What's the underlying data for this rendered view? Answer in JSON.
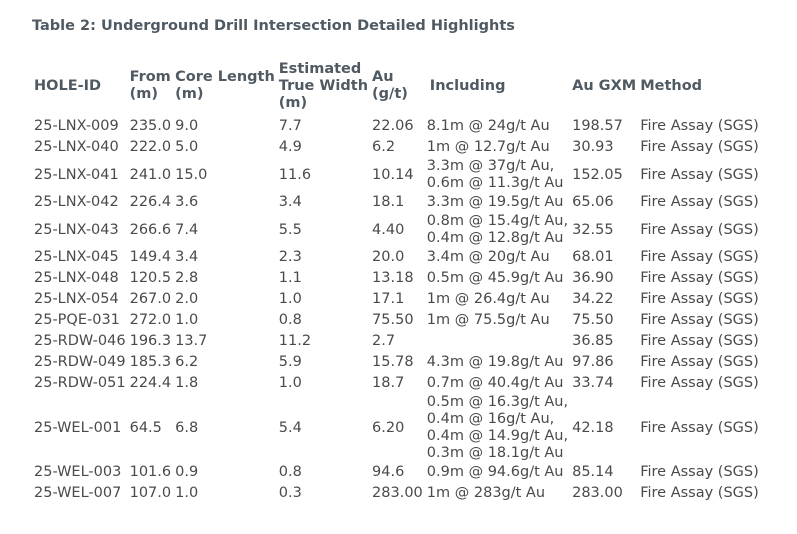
{
  "title": "Table 2: Underground Drill Intersection Detailed Highlights",
  "headers": {
    "hole_id": "HOLE-ID",
    "from": "From\n(m)",
    "core_length": "Core Length\n(m)",
    "true_width": "Estimated\nTrue Width\n(m)",
    "au": "Au\n(g/t)",
    "including": "Including",
    "au_gxm": "Au GXM",
    "method": "Method"
  },
  "rows": [
    {
      "hole_id": "25-LNX-009",
      "from": "235.0",
      "core_length": "9.0",
      "true_width": "7.7",
      "au": "22.06",
      "including": "8.1m @ 24g/t Au",
      "au_gxm": "198.57",
      "method": "Fire Assay (SGS)"
    },
    {
      "hole_id": "25-LNX-040",
      "from": "222.0",
      "core_length": "5.0",
      "true_width": "4.9",
      "au": "6.2",
      "including": "1m @ 12.7g/t Au",
      "au_gxm": "30.93",
      "method": "Fire Assay (SGS)"
    },
    {
      "hole_id": "25-LNX-041",
      "from": "241.0",
      "core_length": "15.0",
      "true_width": "11.6",
      "au": "10.14",
      "including": "3.3m @ 37g/t Au,\n0.6m @ 11.3g/t Au",
      "au_gxm": "152.05",
      "method": "Fire Assay (SGS)"
    },
    {
      "hole_id": "25-LNX-042",
      "from": "226.4",
      "core_length": "3.6",
      "true_width": "3.4",
      "au": "18.1",
      "including": "3.3m @ 19.5g/t Au",
      "au_gxm": "65.06",
      "method": "Fire Assay (SGS)"
    },
    {
      "hole_id": "25-LNX-043",
      "from": "266.6",
      "core_length": "7.4",
      "true_width": "5.5",
      "au": "4.40",
      "including": "0.8m @ 15.4g/t Au,\n0.4m @ 12.8g/t Au",
      "au_gxm": "32.55",
      "method": "Fire Assay (SGS)"
    },
    {
      "hole_id": "25-LNX-045",
      "from": "149.4",
      "core_length": "3.4",
      "true_width": "2.3",
      "au": "20.0",
      "including": "3.4m @ 20g/t Au",
      "au_gxm": "68.01",
      "method": "Fire Assay (SGS)"
    },
    {
      "hole_id": "25-LNX-048",
      "from": "120.5",
      "core_length": "2.8",
      "true_width": "1.1",
      "au": "13.18",
      "including": "0.5m @ 45.9g/t Au",
      "au_gxm": "36.90",
      "method": "Fire Assay (SGS)"
    },
    {
      "hole_id": "25-LNX-054",
      "from": "267.0",
      "core_length": "2.0",
      "true_width": "1.0",
      "au": "17.1",
      "including": "1m @ 26.4g/t Au",
      "au_gxm": "34.22",
      "method": "Fire Assay (SGS)"
    },
    {
      "hole_id": "25-PQE-031",
      "from": "272.0",
      "core_length": "1.0",
      "true_width": "0.8",
      "au": "75.50",
      "including": "1m @ 75.5g/t Au",
      "au_gxm": "75.50",
      "method": "Fire Assay (SGS)"
    },
    {
      "hole_id": "25-RDW-046",
      "from": "196.3",
      "core_length": "13.7",
      "true_width": "11.2",
      "au": "2.7",
      "including": "",
      "au_gxm": "36.85",
      "method": "Fire Assay (SGS)"
    },
    {
      "hole_id": "25-RDW-049",
      "from": "185.3",
      "core_length": "6.2",
      "true_width": "5.9",
      "au": "15.78",
      "including": "4.3m @ 19.8g/t Au",
      "au_gxm": "97.86",
      "method": "Fire Assay (SGS)"
    },
    {
      "hole_id": "25-RDW-051",
      "from": "224.4",
      "core_length": "1.8",
      "true_width": "1.0",
      "au": "18.7",
      "including": "0.7m @ 40.4g/t Au",
      "au_gxm": "33.74",
      "method": "Fire Assay (SGS)"
    },
    {
      "hole_id": "25-WEL-001",
      "from": "64.5",
      "core_length": "6.8",
      "true_width": "5.4",
      "au": "6.20",
      "including": "0.5m @ 16.3g/t Au,\n0.4m @ 16g/t Au,\n0.4m @ 14.9g/t Au,\n0.3m @ 18.1g/t Au",
      "au_gxm": "42.18",
      "method": "Fire Assay (SGS)"
    },
    {
      "hole_id": "25-WEL-003",
      "from": "101.6",
      "core_length": "0.9",
      "true_width": "0.8",
      "au": "94.6",
      "including": "0.9m @ 94.6g/t Au",
      "au_gxm": "85.14",
      "method": "Fire Assay (SGS)"
    },
    {
      "hole_id": "25-WEL-007",
      "from": "107.0",
      "core_length": "1.0",
      "true_width": "0.3",
      "au": "283.00",
      "including": "1m @ 283g/t Au",
      "au_gxm": "283.00",
      "method": "Fire Assay (SGS)"
    }
  ]
}
